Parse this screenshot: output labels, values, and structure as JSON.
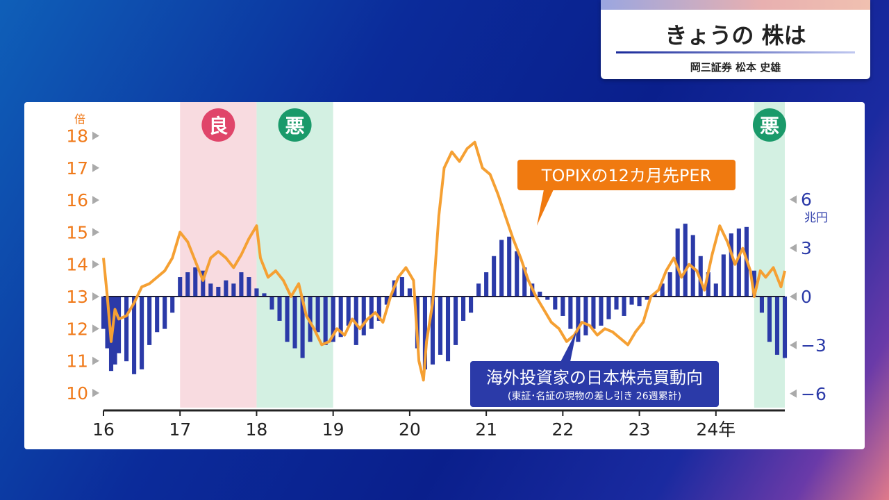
{
  "header": {
    "title": "きょうの 株は",
    "subtitle": "岡三証券 松本 史雄"
  },
  "chart_data": {
    "type": "line",
    "left_axis": {
      "unit": "倍",
      "ticks": [
        "10",
        "11",
        "12",
        "13",
        "14",
        "15",
        "16",
        "17",
        "18"
      ],
      "ylim": [
        10,
        18
      ]
    },
    "right_axis": {
      "unit": "兆円",
      "ticks": [
        "6",
        "3",
        "0",
        "−3",
        "−6"
      ],
      "ylim": [
        -6,
        6
      ]
    },
    "x_ticks": [
      "16",
      "17",
      "18",
      "19",
      "20",
      "21",
      "22",
      "23",
      "24年"
    ],
    "xlim": [
      2016,
      2024.9
    ],
    "colors": {
      "per": "#f5a033",
      "flow": "#2b3aa8",
      "good": "#f8dbe0",
      "bad": "#d3f0e2",
      "good_badge": "#e0456a",
      "bad_badge": "#1a9a6a",
      "left_axis_text": "#f07a1a",
      "right_axis_text": "#2b3aa8"
    },
    "regions": [
      {
        "label": "良",
        "kind": "good",
        "start": 2017.0,
        "end": 2018.0
      },
      {
        "label": "悪",
        "kind": "bad",
        "start": 2018.0,
        "end": 2019.0
      },
      {
        "label": "悪",
        "kind": "bad",
        "start": 2024.5,
        "end": 2024.9
      }
    ],
    "series": [
      {
        "name": "TOPIXの12カ月先PER",
        "axis": "left",
        "style": "line",
        "x": [
          2016.0,
          2016.05,
          2016.1,
          2016.15,
          2016.2,
          2016.3,
          2016.4,
          2016.5,
          2016.6,
          2016.7,
          2016.8,
          2016.9,
          2017.0,
          2017.1,
          2017.2,
          2017.3,
          2017.4,
          2017.5,
          2017.6,
          2017.7,
          2017.8,
          2017.9,
          2018.0,
          2018.05,
          2018.15,
          2018.25,
          2018.35,
          2018.45,
          2018.55,
          2018.65,
          2018.75,
          2018.85,
          2018.95,
          2019.05,
          2019.15,
          2019.25,
          2019.35,
          2019.45,
          2019.55,
          2019.65,
          2019.75,
          2019.85,
          2019.95,
          2020.05,
          2020.12,
          2020.18,
          2020.22,
          2020.3,
          2020.38,
          2020.45,
          2020.55,
          2020.65,
          2020.75,
          2020.85,
          2020.95,
          2021.05,
          2021.15,
          2021.25,
          2021.35,
          2021.45,
          2021.55,
          2021.65,
          2021.75,
          2021.85,
          2021.95,
          2022.05,
          2022.15,
          2022.25,
          2022.35,
          2022.45,
          2022.55,
          2022.65,
          2022.75,
          2022.85,
          2022.95,
          2023.05,
          2023.15,
          2023.25,
          2023.35,
          2023.45,
          2023.55,
          2023.65,
          2023.75,
          2023.85,
          2023.95,
          2024.05,
          2024.15,
          2024.25,
          2024.35,
          2024.45,
          2024.5,
          2024.58,
          2024.65,
          2024.75,
          2024.85,
          2024.9
        ],
        "values": [
          14.2,
          13.0,
          11.6,
          12.6,
          12.3,
          12.4,
          12.8,
          13.3,
          13.4,
          13.6,
          13.8,
          14.2,
          15.0,
          14.7,
          14.1,
          13.5,
          14.2,
          14.4,
          14.2,
          13.9,
          14.3,
          14.8,
          15.2,
          14.2,
          13.6,
          13.8,
          13.5,
          13.0,
          13.4,
          12.4,
          12.0,
          11.5,
          11.6,
          12.0,
          11.8,
          12.3,
          12.0,
          12.3,
          12.5,
          12.2,
          13.0,
          13.6,
          13.9,
          13.5,
          11.0,
          10.4,
          11.6,
          12.8,
          15.5,
          17.0,
          17.5,
          17.2,
          17.6,
          17.8,
          17.0,
          16.8,
          16.2,
          15.5,
          14.8,
          14.2,
          13.5,
          13.0,
          12.6,
          12.2,
          12.0,
          11.6,
          11.8,
          12.2,
          12.1,
          11.8,
          12.0,
          11.9,
          11.7,
          11.5,
          11.9,
          12.2,
          13.0,
          13.2,
          13.8,
          14.2,
          13.6,
          14.0,
          13.8,
          13.2,
          14.3,
          15.2,
          14.7,
          14.0,
          14.5,
          13.8,
          13.0,
          13.8,
          13.6,
          13.9,
          13.3,
          13.8
        ]
      },
      {
        "name": "海外投資家の日本株売買動向",
        "note": "(東証･名証の現物の差し引き 26週累計)",
        "axis": "right",
        "style": "bars",
        "x": [
          2016.0,
          2016.05,
          2016.1,
          2016.15,
          2016.2,
          2016.3,
          2016.4,
          2016.5,
          2016.6,
          2016.7,
          2016.8,
          2016.9,
          2017.0,
          2017.1,
          2017.2,
          2017.3,
          2017.4,
          2017.5,
          2017.6,
          2017.7,
          2017.8,
          2017.9,
          2018.0,
          2018.1,
          2018.2,
          2018.3,
          2018.4,
          2018.5,
          2018.6,
          2018.7,
          2018.8,
          2018.9,
          2019.0,
          2019.1,
          2019.2,
          2019.3,
          2019.4,
          2019.5,
          2019.6,
          2019.7,
          2019.8,
          2019.9,
          2020.0,
          2020.1,
          2020.2,
          2020.3,
          2020.4,
          2020.5,
          2020.6,
          2020.7,
          2020.8,
          2020.9,
          2021.0,
          2021.1,
          2021.2,
          2021.3,
          2021.4,
          2021.5,
          2021.6,
          2021.7,
          2021.8,
          2021.9,
          2022.0,
          2022.1,
          2022.2,
          2022.3,
          2022.4,
          2022.5,
          2022.6,
          2022.7,
          2022.8,
          2022.9,
          2023.0,
          2023.1,
          2023.2,
          2023.3,
          2023.4,
          2023.5,
          2023.6,
          2023.7,
          2023.8,
          2023.9,
          2024.0,
          2024.1,
          2024.2,
          2024.3,
          2024.4,
          2024.5,
          2024.6,
          2024.7,
          2024.8,
          2024.9
        ],
        "values": [
          -2.0,
          -3.2,
          -4.6,
          -4.2,
          -3.5,
          -4.0,
          -4.8,
          -4.5,
          -3.0,
          -2.2,
          -2.0,
          -1.0,
          1.2,
          1.5,
          1.8,
          1.6,
          0.8,
          0.6,
          1.0,
          0.8,
          1.5,
          1.2,
          0.5,
          0.2,
          -0.8,
          -1.5,
          -2.8,
          -3.2,
          -3.8,
          -2.8,
          -2.2,
          -3.0,
          -2.8,
          -2.5,
          -1.8,
          -3.0,
          -2.4,
          -2.0,
          -1.5,
          -0.5,
          1.0,
          1.2,
          0.5,
          -3.2,
          -4.5,
          -4.2,
          -3.6,
          -4.0,
          -3.0,
          -1.5,
          -1.0,
          0.8,
          1.5,
          2.5,
          3.5,
          3.7,
          2.8,
          1.8,
          0.8,
          0.3,
          -0.2,
          -0.8,
          -1.2,
          -2.0,
          -2.8,
          -2.4,
          -2.0,
          -1.8,
          -1.4,
          -0.8,
          -1.2,
          -0.5,
          -0.6,
          -0.2,
          0.2,
          0.8,
          1.5,
          4.2,
          4.5,
          3.8,
          2.5,
          1.5,
          0.8,
          2.6,
          3.9,
          4.2,
          4.3,
          1.6,
          -1.0,
          -2.8,
          -3.6,
          -3.8
        ]
      }
    ]
  }
}
